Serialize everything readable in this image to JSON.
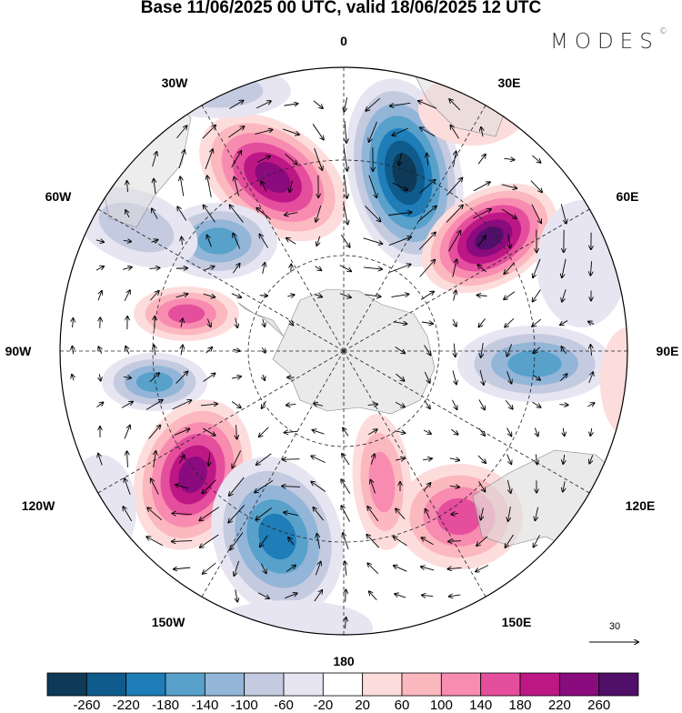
{
  "title": "Base 11/06/2025 00 UTC, valid 18/06/2025 12 UTC",
  "logo": {
    "text": "MODES",
    "mark": "©"
  },
  "longitude_labels": {
    "lon_0": "0",
    "lon_30e": "30E",
    "lon_60e": "60E",
    "lon_90e": "90E",
    "lon_120e": "120E",
    "lon_150e": "150E",
    "lon_180": "180",
    "lon_150w": "150W",
    "lon_120w": "120W",
    "lon_90w": "90W",
    "lon_60w": "60W",
    "lon_30w": "30W"
  },
  "reference_vector": {
    "value": "30"
  },
  "colorbar": {
    "ticks": [
      "-260",
      "-220",
      "-180",
      "-140",
      "-100",
      "-60",
      "-20",
      "20",
      "60",
      "100",
      "140",
      "180",
      "220",
      "260"
    ],
    "colors": [
      "#0e3a57",
      "#0f5b8c",
      "#1f7db8",
      "#57a1cb",
      "#93b5d8",
      "#c4cbe0",
      "#e7e5f1",
      "#ffffff",
      "#fddcdc",
      "#fbb8bf",
      "#f78bb0",
      "#e54e9d",
      "#bd1786",
      "#8a0b7d",
      "#500f69"
    ]
  }
}
